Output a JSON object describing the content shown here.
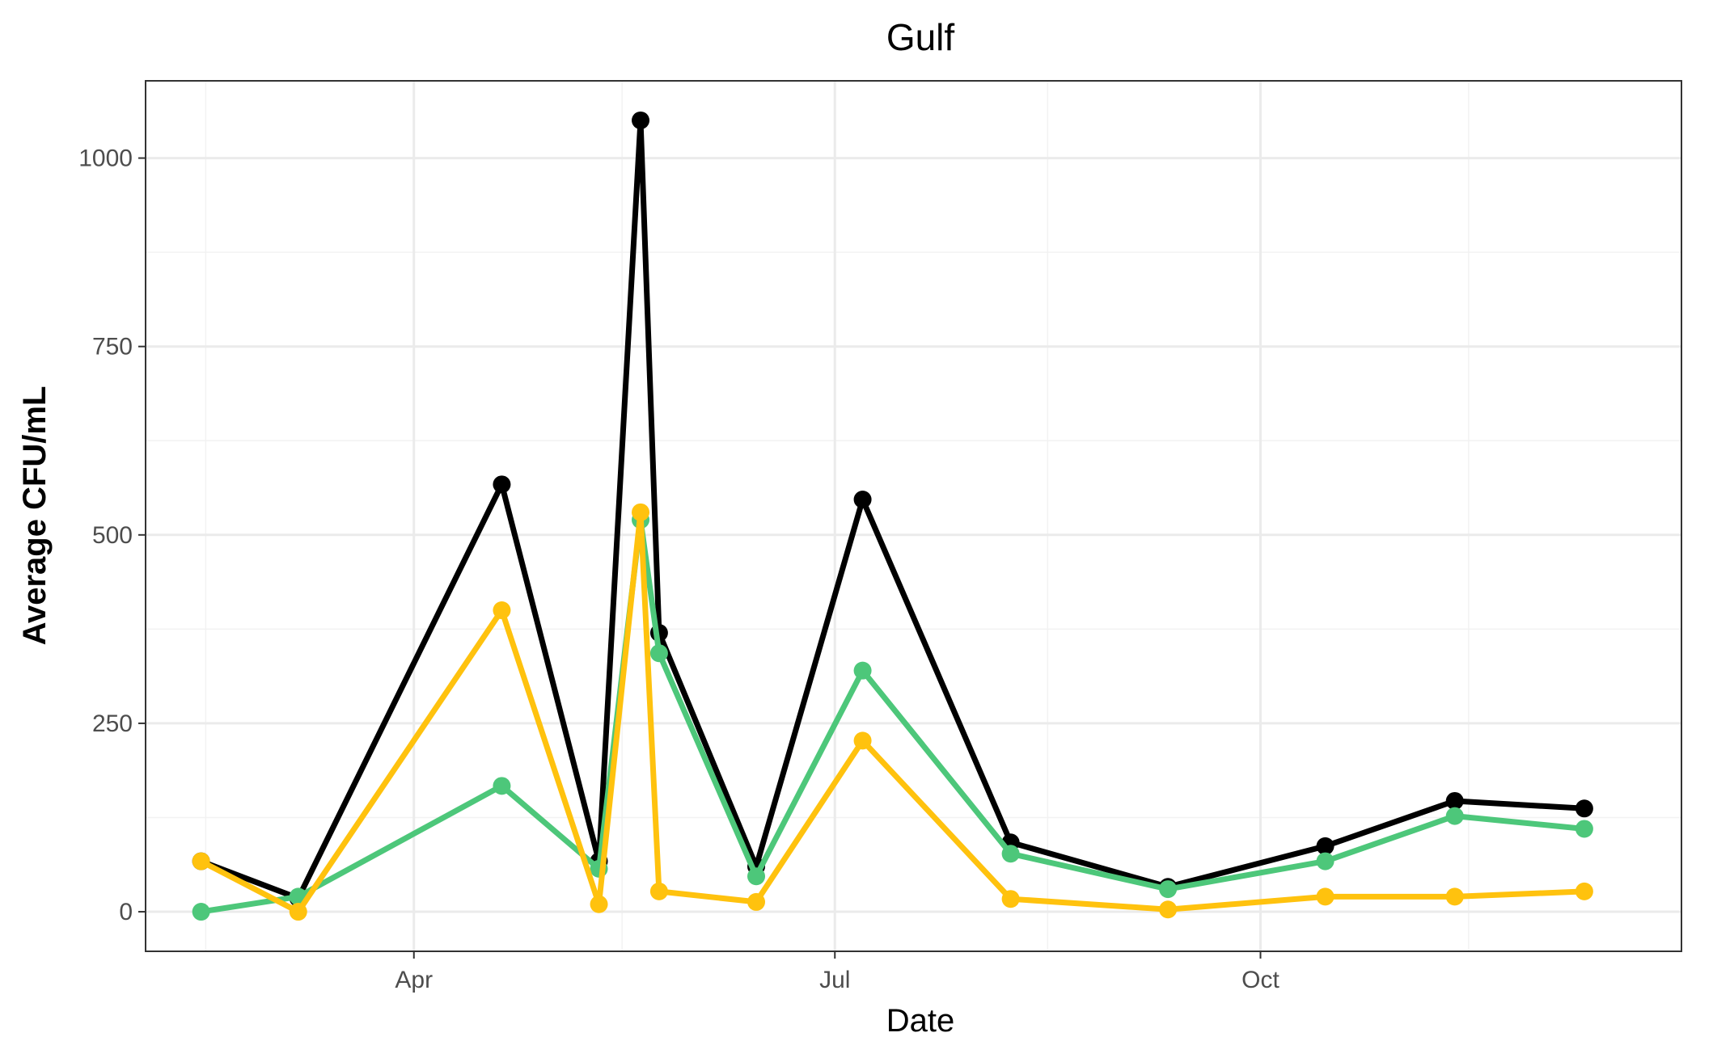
{
  "chart_data": {
    "type": "line",
    "title": "Gulf",
    "xlabel": "Date",
    "ylabel": "Average CFU/mL",
    "x_axis_type": "date",
    "xlim": [
      "2023-02-02",
      "2023-12-31"
    ],
    "ylim": [
      -52.5,
      1102.5
    ],
    "x_ticks": [
      {
        "date": "2023-04-01",
        "label": "Apr"
      },
      {
        "date": "2023-07-01",
        "label": "Jul"
      },
      {
        "date": "2023-10-01",
        "label": "Oct"
      }
    ],
    "x_minor_ticks": [
      "2023-02-15",
      "2023-05-16",
      "2023-08-16",
      "2023-11-15"
    ],
    "y_ticks": [
      0,
      250,
      500,
      750,
      1000
    ],
    "y_minor_ticks": [
      125,
      375,
      625,
      875
    ],
    "grid": true,
    "legend": "none",
    "series": [
      {
        "color": "#000000",
        "x": [
          "2023-02-14",
          "2023-03-07",
          "2023-04-20",
          "2023-05-11",
          "2023-05-20",
          "2023-05-24",
          "2023-06-14",
          "2023-07-07",
          "2023-08-08",
          "2023-09-11",
          "2023-10-15",
          "2023-11-12",
          "2023-12-10"
        ],
        "values": [
          67,
          18,
          567,
          67,
          1050,
          370,
          60,
          547,
          92,
          33,
          87,
          147,
          137
        ]
      },
      {
        "color": "#4dc77a",
        "x": [
          "2023-02-14",
          "2023-03-07",
          "2023-04-20",
          "2023-05-11",
          "2023-05-20",
          "2023-05-24",
          "2023-06-14",
          "2023-07-07",
          "2023-08-08",
          "2023-09-11",
          "2023-10-15",
          "2023-11-12",
          "2023-12-10"
        ],
        "values": [
          0,
          20,
          167,
          57,
          520,
          343,
          47,
          320,
          77,
          30,
          67,
          127,
          110
        ]
      },
      {
        "color": "#ffc20e",
        "x": [
          "2023-02-14",
          "2023-03-07",
          "2023-04-20",
          "2023-05-11",
          "2023-05-20",
          "2023-05-24",
          "2023-06-14",
          "2023-07-07",
          "2023-08-08",
          "2023-09-11",
          "2023-10-15",
          "2023-11-12",
          "2023-12-10"
        ],
        "values": [
          67,
          0,
          400,
          10,
          530,
          27,
          13,
          227,
          17,
          3,
          20,
          20,
          27
        ]
      }
    ]
  }
}
